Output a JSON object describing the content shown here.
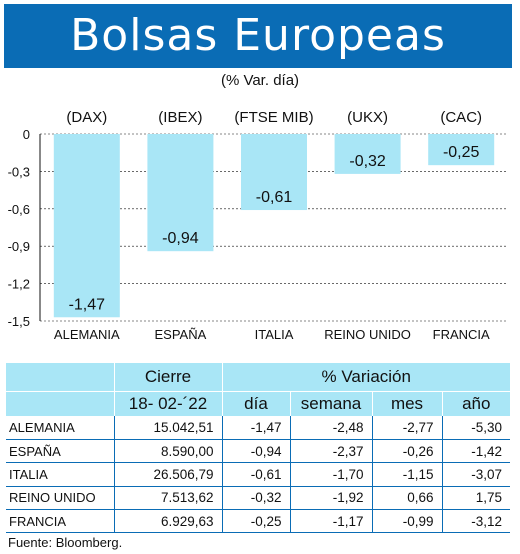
{
  "title": "Bolsas Europeas",
  "subtitle": "(% Var. día)",
  "colors": {
    "title_bg": "#0a6cb5",
    "bar": "#a9e6f6",
    "rule": "#0a6cb5"
  },
  "chart_data": {
    "type": "bar",
    "categories": [
      "ALEMANIA",
      "ESPAÑA",
      "ITALIA",
      "REINO UNIDO",
      "FRANCIA"
    ],
    "index_labels": [
      "(DAX)",
      "(IBEX)",
      "(FTSE MIB)",
      "(UKX)",
      "(CAC)"
    ],
    "values": [
      -1.47,
      -0.94,
      -0.61,
      -0.32,
      -0.25
    ],
    "value_labels": [
      "-1,47",
      "-0,94",
      "-0,61",
      "-0,32",
      "-0,25"
    ],
    "ylim": [
      -1.5,
      0
    ],
    "yticks": [
      0,
      -0.3,
      -0.6,
      -0.9,
      -1.2,
      -1.5
    ],
    "ytick_labels": [
      "0",
      "-0,3",
      "-0,6",
      "-0,9",
      "-1,2",
      "-1,5"
    ],
    "grid": true
  },
  "table": {
    "header_cierre": "Cierre",
    "header_variacion": "% Variación",
    "date": "18- 02-´22",
    "columns": [
      "día",
      "semana",
      "mes",
      "año"
    ],
    "rows": [
      {
        "country": "ALEMANIA",
        "cierre": "15.042,51",
        "dia": "-1,47",
        "semana": "-2,48",
        "mes": "-2,77",
        "ano": "-5,30"
      },
      {
        "country": "ESPAÑA",
        "cierre": "8.590,00",
        "dia": "-0,94",
        "semana": "-2,37",
        "mes": "-0,26",
        "ano": "-1,42"
      },
      {
        "country": "ITALIA",
        "cierre": "26.506,79",
        "dia": "-0,61",
        "semana": "-1,70",
        "mes": "-1,15",
        "ano": "-3,07"
      },
      {
        "country": "REINO UNIDO",
        "cierre": "7.513,62",
        "dia": "-0,32",
        "semana": "-1,92",
        "mes": "0,66",
        "ano": "1,75"
      },
      {
        "country": "FRANCIA",
        "cierre": "6.929,63",
        "dia": "-0,25",
        "semana": "-1,17",
        "mes": "-0,99",
        "ano": "-3,12"
      }
    ]
  },
  "source": "Fuente: Bloomberg."
}
